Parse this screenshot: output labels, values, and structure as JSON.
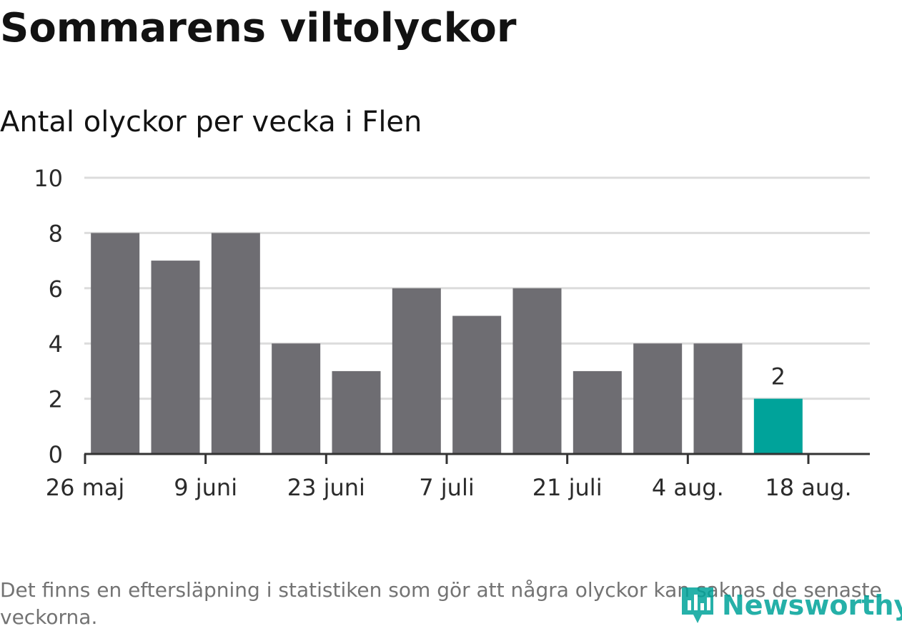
{
  "title": "Sommarens viltolyckor",
  "subtitle": "Antal olyckor per vecka i Flen",
  "note": "Det finns en eftersläpning i statistiken som gör att några olyckor kan saknas de senaste veckorna.",
  "logo": {
    "text": "Newsworthy",
    "icon": "newsworthy-chart-pin-icon"
  },
  "colors": {
    "bar": "#6e6d72",
    "highlight": "#00a39a",
    "grid": "#dcdcdc",
    "axis": "#333333"
  },
  "chart_data": {
    "type": "bar",
    "x": [
      "2019-06-02",
      "2019-06-09",
      "2019-06-16",
      "2019-06-23",
      "2019-06-30",
      "2019-07-07",
      "2019-07-14",
      "2019-07-21",
      "2019-07-28",
      "2019-08-04",
      "2019-08-11",
      "2019-08-18"
    ],
    "values": [
      8,
      7,
      8,
      4,
      3,
      6,
      5,
      6,
      3,
      4,
      4,
      2
    ],
    "highlight_index": 11,
    "data_labels": [
      null,
      null,
      null,
      null,
      null,
      null,
      null,
      null,
      null,
      null,
      null,
      "2"
    ],
    "x_ticks": [
      "26 maj",
      "9 juni",
      "23 juni",
      "7 juli",
      "21 juli",
      "4 aug.",
      "18 aug."
    ],
    "x_tick_dates": [
      "2019-05-26",
      "2019-06-09",
      "2019-06-23",
      "2019-07-07",
      "2019-07-21",
      "2019-08-04",
      "2019-08-18"
    ],
    "y_ticks": [
      0,
      2,
      4,
      6,
      8,
      10
    ],
    "ylim": [
      0,
      10
    ],
    "xlabel": "",
    "ylabel": "",
    "grid": true,
    "legend": "none"
  }
}
